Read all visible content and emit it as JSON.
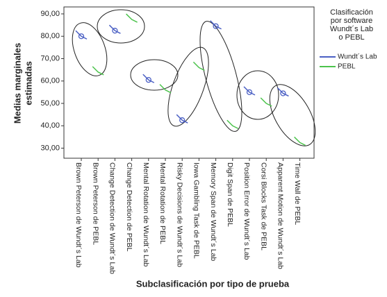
{
  "chart_data": {
    "type": "line",
    "y_label_lines": [
      "Medias marginales",
      "estimadas"
    ],
    "x_label": "Subclasificación por tipo de prueba",
    "legend_title_lines": [
      "Clasificación",
      "por software",
      "Wundt´s Lab",
      "o PEBL"
    ],
    "categories": [
      "Brown Peterson de Wundt´s Lab",
      "Brown Peterson de PEBL",
      "Change Detection de Wundt´s Lab",
      "Change Detection de PEBL",
      "Mental Rotation de Wundt´s Lab",
      "Mental Rotation de PEBL",
      "Risky Decisions de Wundt´s Lab",
      "Iowa Gambling Task de PEBL",
      "Memory Span de Wundt´s Lab",
      "Digit Span de PEBL",
      "Position Error de Wundt´s Lab",
      "Corsi Blocks Task de PEBL",
      "Apparent Motion de Wundt´s Lab",
      "Time Wall de PEBL"
    ],
    "series": [
      {
        "name": "Wundt´s Lab",
        "color": "#4a5fc4",
        "marker": "circle",
        "values": [
          80,
          null,
          82.5,
          null,
          60.5,
          null,
          42.5,
          null,
          84.5,
          null,
          55,
          null,
          54.5,
          null
        ]
      },
      {
        "name": "PEBL",
        "color": "#4cc34c",
        "marker": "none",
        "values": [
          null,
          64,
          null,
          87.5,
          null,
          56,
          null,
          66,
          null,
          40,
          null,
          50,
          null,
          32.5
        ]
      }
    ],
    "ylim": [
      25.5,
      93.1
    ],
    "yticks": [
      {
        "value": 30,
        "label": "30,00"
      },
      {
        "value": 40,
        "label": "40,00"
      },
      {
        "value": 50,
        "label": "50,00"
      },
      {
        "value": 60,
        "label": "60,00"
      },
      {
        "value": 70,
        "label": "70,00"
      },
      {
        "value": 80,
        "label": "80,00"
      },
      {
        "value": 90,
        "label": "90,00"
      }
    ],
    "legend_position": "right"
  }
}
